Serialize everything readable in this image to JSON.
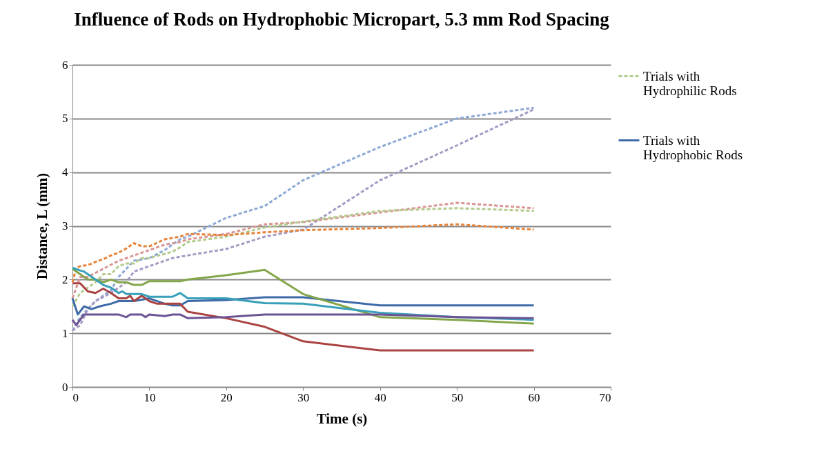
{
  "chart_data": {
    "type": "line",
    "title": "Influence of Rods on Hydrophobic Micropart, 5.3 mm Rod Spacing",
    "xlabel": "Time (s)",
    "ylabel": "Distance, L (mm)",
    "xlim": [
      0,
      70
    ],
    "xticks": [
      0,
      10,
      20,
      30,
      40,
      50,
      60,
      70
    ],
    "ylim": [
      0,
      6
    ],
    "yticks": [
      0,
      1,
      2,
      3,
      4,
      5,
      6
    ],
    "grid": "y",
    "legend": "right",
    "marker": "none",
    "series": [
      {
        "color": "#8ea9d6",
        "line_style": "dashed",
        "x": [
          0,
          1,
          3,
          5,
          6,
          7,
          8,
          10,
          12,
          14,
          15,
          20,
          25,
          30,
          40,
          50,
          60
        ],
        "values": [
          1.05,
          1.3,
          1.6,
          1.8,
          2.05,
          2.2,
          2.35,
          2.4,
          2.55,
          2.75,
          2.8,
          3.15,
          3.37,
          3.85,
          4.47,
          5.0,
          5.2
        ]
      },
      {
        "color": "#a699c3",
        "line_style": "dashed",
        "x": [
          0,
          1,
          2,
          3,
          5,
          7,
          8,
          10,
          13,
          15,
          20,
          25,
          30,
          40,
          50,
          60
        ],
        "values": [
          1.05,
          1.15,
          1.45,
          1.6,
          1.75,
          1.95,
          2.15,
          2.25,
          2.4,
          2.45,
          2.57,
          2.8,
          2.93,
          3.85,
          4.5,
          5.17
        ]
      },
      {
        "color": "#d99594",
        "line_style": "dashed",
        "x": [
          0,
          1,
          2,
          4,
          6,
          8,
          10,
          12,
          14,
          15,
          20,
          25,
          30,
          40,
          50,
          60
        ],
        "values": [
          1.65,
          2.05,
          2.05,
          2.2,
          2.35,
          2.45,
          2.55,
          2.65,
          2.7,
          2.75,
          2.85,
          3.03,
          3.07,
          3.25,
          3.43,
          3.33
        ]
      },
      {
        "name": "Trials with Hydrophilic Rods",
        "color": "#b3cb8c",
        "line_style": "dashed",
        "x": [
          0,
          1,
          3,
          4,
          5,
          6,
          7,
          8,
          9,
          10,
          12,
          13,
          14,
          15,
          20,
          25,
          30,
          40,
          50,
          60
        ],
        "values": [
          1.5,
          1.75,
          1.95,
          2.1,
          2.1,
          2.25,
          2.3,
          2.3,
          2.4,
          2.4,
          2.48,
          2.52,
          2.6,
          2.7,
          2.8,
          2.97,
          3.08,
          3.28,
          3.33,
          3.28
        ]
      },
      {
        "color": "#e6843a",
        "line_style": "dashed",
        "x": [
          0,
          0.5,
          1,
          2,
          3,
          4,
          5,
          6,
          7,
          8,
          9,
          10,
          12,
          14,
          15,
          20,
          25,
          30,
          40,
          50,
          60
        ],
        "values": [
          1.95,
          2.22,
          2.25,
          2.27,
          2.33,
          2.38,
          2.45,
          2.5,
          2.58,
          2.68,
          2.62,
          2.62,
          2.75,
          2.8,
          2.85,
          2.83,
          2.88,
          2.92,
          2.96,
          3.03,
          2.93
        ]
      },
      {
        "name": "Trials with Hydrophobic Rods",
        "color": "#3e6aa8",
        "line_style": "solid",
        "x": [
          0,
          0.7,
          1.5,
          2.5,
          3.5,
          5,
          6,
          8,
          10,
          12,
          13,
          14,
          15,
          20,
          25,
          30,
          40,
          50,
          60
        ],
        "values": [
          1.65,
          1.35,
          1.5,
          1.45,
          1.5,
          1.55,
          1.6,
          1.6,
          1.65,
          1.55,
          1.52,
          1.52,
          1.6,
          1.62,
          1.67,
          1.67,
          1.52,
          1.52,
          1.52
        ]
      },
      {
        "color": "#84a64a",
        "line_style": "solid",
        "x": [
          0,
          1,
          2,
          3,
          4,
          5,
          6,
          7,
          8,
          9,
          10,
          14,
          15,
          20,
          25,
          30,
          40,
          50,
          60
        ],
        "values": [
          2.2,
          2.1,
          2.0,
          2.0,
          1.95,
          2.0,
          1.95,
          1.95,
          1.9,
          1.9,
          1.97,
          1.97,
          2.0,
          2.08,
          2.18,
          1.73,
          1.3,
          1.25,
          1.18
        ]
      },
      {
        "color": "#a94442",
        "line_style": "solid",
        "x": [
          0,
          1,
          2,
          3,
          4,
          5,
          6,
          7,
          7.5,
          8,
          9,
          10,
          11,
          14,
          15,
          20,
          25,
          30,
          40,
          50,
          60
        ],
        "values": [
          1.93,
          1.93,
          1.78,
          1.75,
          1.83,
          1.75,
          1.65,
          1.65,
          1.7,
          1.6,
          1.7,
          1.6,
          1.55,
          1.55,
          1.4,
          1.28,
          1.12,
          0.85,
          0.68,
          0.68,
          0.68
        ]
      },
      {
        "color": "#38a0b8",
        "line_style": "solid",
        "x": [
          0,
          1,
          1.5,
          3,
          4,
          5,
          6,
          6.5,
          7,
          9,
          10,
          13,
          14,
          15,
          20,
          25,
          30,
          40,
          50,
          60
        ],
        "values": [
          2.22,
          2.17,
          2.15,
          2.0,
          1.9,
          1.85,
          1.75,
          1.78,
          1.73,
          1.73,
          1.68,
          1.68,
          1.75,
          1.65,
          1.65,
          1.56,
          1.55,
          1.38,
          1.3,
          1.25
        ]
      },
      {
        "color": "#6c5394",
        "line_style": "solid",
        "x": [
          0,
          0.5,
          1.5,
          6,
          7,
          7.5,
          9,
          9.5,
          10,
          12,
          13,
          14,
          15,
          20,
          25,
          30,
          40,
          50,
          60
        ],
        "values": [
          1.25,
          1.15,
          1.35,
          1.35,
          1.3,
          1.35,
          1.35,
          1.3,
          1.35,
          1.32,
          1.35,
          1.35,
          1.28,
          1.3,
          1.35,
          1.35,
          1.35,
          1.3,
          1.28
        ]
      }
    ]
  }
}
